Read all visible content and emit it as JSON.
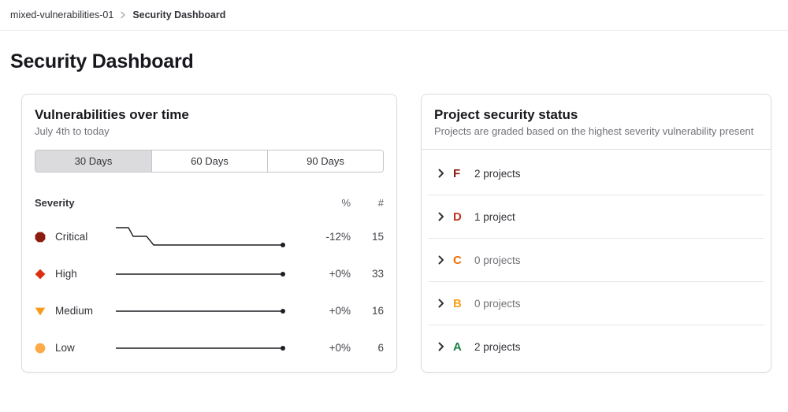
{
  "breadcrumb": {
    "project": "mixed-vulnerabilities-01",
    "current": "Security Dashboard"
  },
  "page": {
    "title": "Security Dashboard"
  },
  "vuln_card": {
    "title": "Vulnerabilities over time",
    "subtitle": "July 4th to today",
    "tabs": [
      {
        "label": "30 Days",
        "selected": true
      },
      {
        "label": "60 Days",
        "selected": false
      },
      {
        "label": "90 Days",
        "selected": false
      }
    ],
    "table": {
      "severity_header": "Severity",
      "percent_header": "%",
      "count_header": "#",
      "line_color": "#1f1e24",
      "rows": [
        {
          "label": "Critical",
          "color": "#8d1c10",
          "percent": "-12%",
          "count": "15",
          "spark": [
            [
              1,
              6
            ],
            [
              17,
              6
            ],
            [
              23,
              17
            ],
            [
              40,
              17
            ],
            [
              49,
              28
            ],
            [
              213,
              28
            ]
          ]
        },
        {
          "label": "High",
          "color": "#dc2f12",
          "percent": "+0%",
          "count": "33",
          "spark": [
            [
              1,
              18
            ],
            [
              213,
              18
            ]
          ]
        },
        {
          "label": "Medium",
          "color": "#f99a1d",
          "percent": "+0%",
          "count": "16",
          "spark": [
            [
              1,
              18
            ],
            [
              213,
              18
            ]
          ]
        },
        {
          "label": "Low",
          "color": "#fcab48",
          "percent": "+0%",
          "count": "6",
          "spark": [
            [
              1,
              18
            ],
            [
              213,
              18
            ]
          ]
        }
      ]
    }
  },
  "status_card": {
    "title": "Project security status",
    "subtitle": "Projects are graded based on the highest severity vulnerability present",
    "rows": [
      {
        "grade": "F",
        "color": "#8d1c10",
        "count": "2 projects"
      },
      {
        "grade": "D",
        "color": "#c0341d",
        "count": "1 project"
      },
      {
        "grade": "C",
        "color": "#ef6c00",
        "count": "0 projects"
      },
      {
        "grade": "B",
        "color": "#f9a019",
        "count": "0 projects"
      },
      {
        "grade": "A",
        "color": "#187f42",
        "count": "2 projects"
      }
    ]
  }
}
